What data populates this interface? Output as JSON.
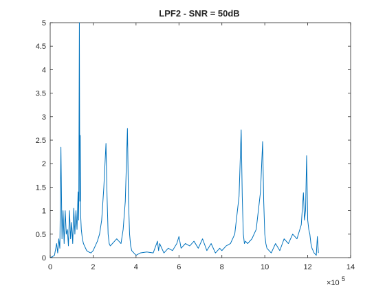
{
  "chart_data": {
    "type": "line",
    "title": "LPF2 - SNR = 50dB",
    "xlabel": "",
    "ylabel": "",
    "x_exponent_label": "×10",
    "x_exponent_power": "5",
    "xlim": [
      0,
      14
    ],
    "ylim": [
      0,
      5
    ],
    "x_ticks": [
      0,
      2,
      4,
      6,
      8,
      10,
      12,
      14
    ],
    "x_tick_labels": [
      "0",
      "2",
      "4",
      "6",
      "8",
      "10",
      "12",
      "14"
    ],
    "y_ticks": [
      0,
      0.5,
      1,
      1.5,
      2,
      2.5,
      3,
      3.5,
      4,
      4.5,
      5
    ],
    "y_tick_labels": [
      "0",
      "0.5",
      "1",
      "1.5",
      "2",
      "2.5",
      "3",
      "3.5",
      "4",
      "4.5",
      "5"
    ],
    "grid": false,
    "line_color": "#0072BD",
    "axis_color": "#262626",
    "series": [
      {
        "x": [
          0.0,
          0.1,
          0.2,
          0.3,
          0.35,
          0.4,
          0.45,
          0.5,
          0.55,
          0.6,
          0.65,
          0.7,
          0.75,
          0.8,
          0.85,
          0.9,
          0.95,
          1.0,
          1.05,
          1.1,
          1.15,
          1.2,
          1.25,
          1.3,
          1.33,
          1.36,
          1.38,
          1.4,
          1.42,
          1.45,
          1.5,
          1.55,
          1.6,
          1.7,
          1.8,
          1.9,
          2.0,
          2.1,
          2.2,
          2.3,
          2.4,
          2.5,
          2.6,
          2.65,
          2.7,
          2.75,
          2.8,
          2.9,
          3.0,
          3.1,
          3.2,
          3.3,
          3.4,
          3.5,
          3.6,
          3.65,
          3.7,
          3.75,
          3.8,
          3.9,
          4.0,
          4.2,
          4.5,
          4.8,
          5.0,
          5.05,
          5.1,
          5.3,
          5.5,
          5.7,
          5.9,
          6.0,
          6.1,
          6.3,
          6.5,
          6.7,
          6.9,
          7.1,
          7.3,
          7.5,
          7.7,
          7.9,
          8.0,
          8.2,
          8.4,
          8.6,
          8.8,
          8.9,
          8.95,
          9.0,
          9.05,
          9.1,
          9.2,
          9.4,
          9.6,
          9.8,
          9.9,
          9.95,
          10.0,
          10.05,
          10.1,
          10.3,
          10.5,
          10.7,
          10.9,
          11.1,
          11.3,
          11.5,
          11.7,
          11.8,
          11.85,
          11.9,
          11.95,
          12.0,
          12.05,
          12.1,
          12.15,
          12.2,
          12.3,
          12.4,
          12.45,
          12.5
        ],
        "y": [
          0.0,
          0.02,
          0.05,
          0.3,
          0.1,
          0.4,
          0.2,
          2.35,
          0.4,
          1.0,
          0.3,
          1.0,
          0.5,
          0.6,
          0.25,
          1.0,
          0.4,
          0.75,
          0.3,
          1.05,
          0.5,
          1.0,
          0.6,
          1.4,
          0.8,
          5.0,
          1.2,
          2.6,
          0.9,
          0.6,
          0.4,
          0.3,
          0.25,
          0.15,
          0.12,
          0.1,
          0.15,
          0.25,
          0.35,
          0.5,
          0.8,
          1.5,
          2.43,
          1.3,
          0.5,
          0.3,
          0.25,
          0.3,
          0.35,
          0.4,
          0.35,
          0.3,
          0.6,
          1.2,
          2.75,
          1.2,
          0.5,
          0.25,
          0.15,
          0.1,
          0.05,
          0.1,
          0.12,
          0.1,
          0.35,
          0.15,
          0.3,
          0.1,
          0.2,
          0.15,
          0.3,
          0.45,
          0.2,
          0.3,
          0.25,
          0.35,
          0.2,
          0.4,
          0.15,
          0.3,
          0.1,
          0.2,
          0.15,
          0.25,
          0.3,
          0.5,
          1.3,
          2.72,
          1.3,
          0.5,
          0.3,
          0.35,
          0.3,
          0.4,
          0.6,
          1.4,
          2.47,
          1.2,
          0.5,
          0.3,
          0.2,
          0.1,
          0.3,
          0.15,
          0.4,
          0.3,
          0.5,
          0.4,
          0.7,
          1.38,
          0.8,
          1.0,
          2.17,
          0.8,
          0.6,
          0.5,
          0.3,
          0.2,
          0.1,
          0.05,
          0.45,
          0.1
        ]
      }
    ]
  }
}
